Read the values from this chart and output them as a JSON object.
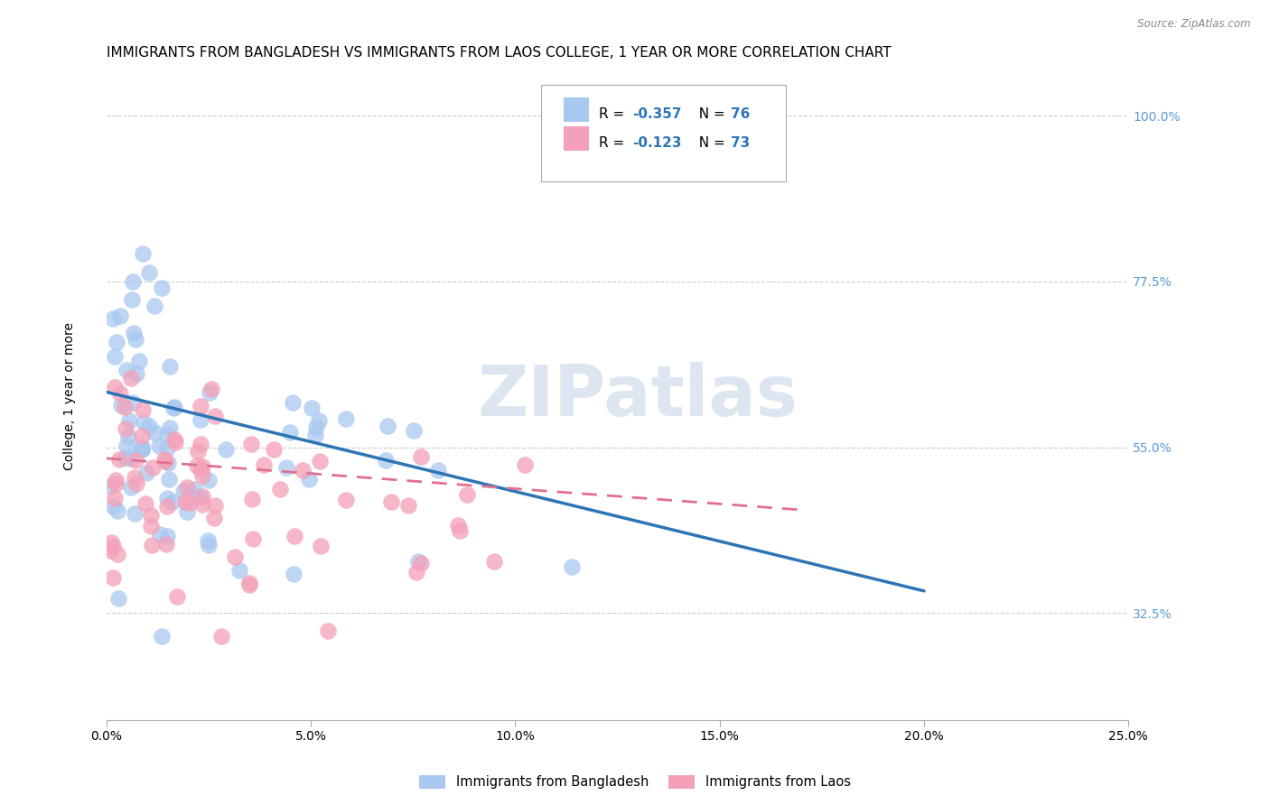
{
  "title": "IMMIGRANTS FROM BANGLADESH VS IMMIGRANTS FROM LAOS COLLEGE, 1 YEAR OR MORE CORRELATION CHART",
  "source": "Source: ZipAtlas.com",
  "ylabel": "College, 1 year or more",
  "right_yticks": [
    0.325,
    0.55,
    0.775,
    1.0
  ],
  "right_yticklabels": [
    "32.5%",
    "55.0%",
    "77.5%",
    "100.0%"
  ],
  "xmin": 0.0,
  "xmax": 0.25,
  "ymin": 0.18,
  "ymax": 1.06,
  "series1_label": "Immigrants from Bangladesh",
  "series1_color": "#A8C8F0",
  "series1_line_color": "#2E75B6",
  "series2_label": "Immigrants from Laos",
  "series2_color": "#F4A0B8",
  "series2_line_color": "#E07090",
  "legend_R1": "R = ",
  "legend_R1_val": "-0.357",
  "legend_N1": "N = ",
  "legend_N1_val": "76",
  "legend_R2": "R = ",
  "legend_R2_val": "-0.123",
  "legend_N2": "N = ",
  "legend_N2_val": "73",
  "grid_color": "#CCCCCC",
  "background_color": "#FFFFFF",
  "title_fontsize": 11,
  "axis_fontsize": 10,
  "tick_fontsize": 10,
  "right_tick_color": "#5B9BD5",
  "watermark_text": "ZIPatlas",
  "watermark_color": "#DDE5F0",
  "bang_line_x0": 0.0,
  "bang_line_y0": 0.625,
  "bang_line_x1": 0.2,
  "bang_line_y1": 0.355,
  "laos_line_x0": 0.0,
  "laos_line_y0": 0.535,
  "laos_line_x1": 0.17,
  "laos_line_y1": 0.465
}
